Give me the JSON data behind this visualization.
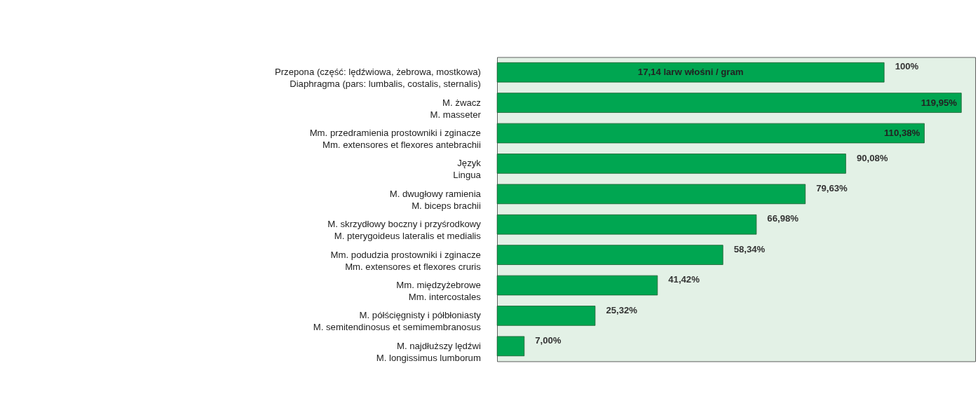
{
  "chart_data": {
    "type": "bar",
    "orientation": "horizontal",
    "categories": [
      "Przepona (część: lędźwiowa, żebrowa, mostkowa)\nDiaphragma (pars: lumbalis, costalis, sternalis)",
      "M. żwacz\nM. masseter",
      "Mm. przedramienia prostowniki i zginacze\nMm. extensores et flexores antebrachii",
      "Język\nLingua",
      "M. dwugłowy ramienia\nM. biceps brachii",
      "M. skrzydłowy boczny i przyśrodkowy\nM. pterygoideus lateralis et medialis",
      "Mm. podudzia prostowniki i zginacze\nMm. extensores et flexores cruris",
      "Mm. międzyżebrowe\nMm. intercostales",
      "M. półścięgnisty i półbłoniasty\nM. semitendinosus et semimembranosus",
      "M. najdłuższy lędźwi\nM. longissimus lumborum"
    ],
    "values": [
      100,
      119.95,
      110.38,
      90.08,
      79.63,
      66.98,
      58.34,
      41.42,
      25.32,
      7.0
    ],
    "value_labels": [
      "100%",
      "119,95%",
      "110,38%",
      "90,08%",
      "79,63%",
      "66,98%",
      "58,34%",
      "41,42%",
      "25,32%",
      "7,00%"
    ],
    "color": "#00a651",
    "annotations": [
      "17,14 larw włośni / gram"
    ],
    "grid": false
  }
}
